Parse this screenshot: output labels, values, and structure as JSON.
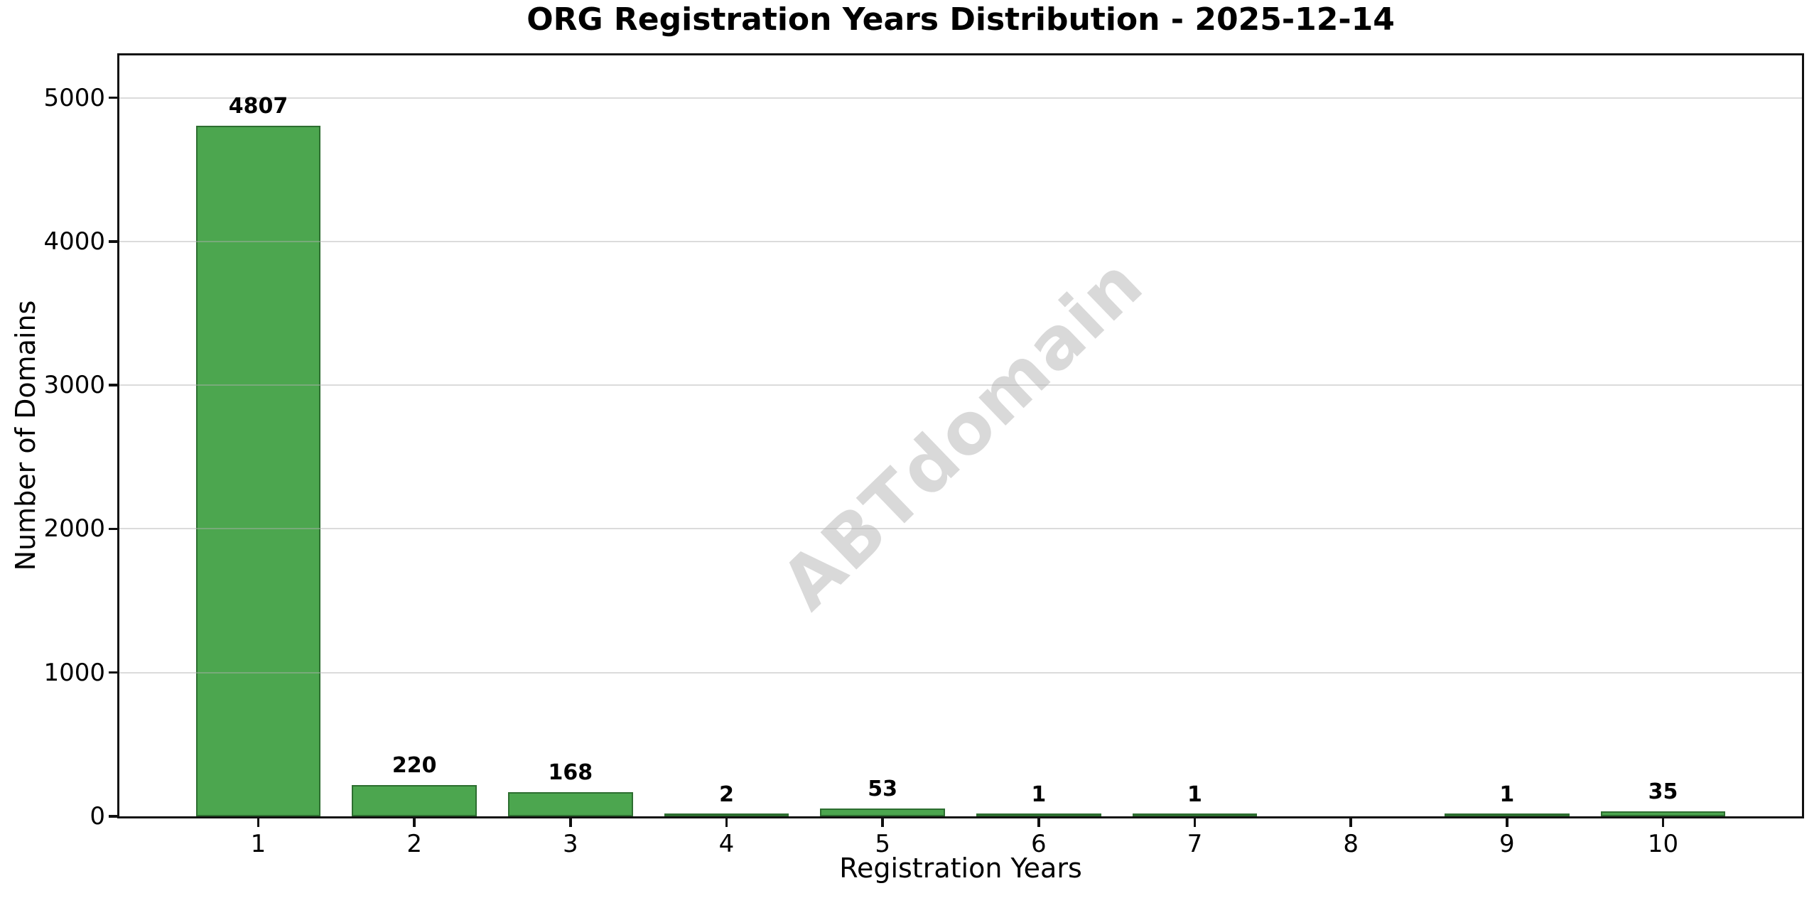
{
  "chart_data": {
    "type": "bar",
    "title": "ORG Registration Years Distribution - 2025-12-14",
    "xlabel": "Registration Years",
    "ylabel": "Number of Domains",
    "watermark": "ABTdomain",
    "categories": [
      1,
      2,
      3,
      4,
      5,
      6,
      7,
      8,
      9,
      10
    ],
    "values": [
      4807,
      220,
      168,
      2,
      53,
      1,
      1,
      0,
      1,
      35
    ],
    "bar_labels": [
      "4807",
      "220",
      "168",
      "2",
      "53",
      "1",
      "1",
      "",
      "1",
      "35"
    ],
    "yticks": [
      0,
      1000,
      2000,
      3000,
      4000,
      5000
    ],
    "ylim": [
      0,
      5295
    ],
    "xlim": [
      0.11,
      10.89
    ],
    "bar_width": 0.8,
    "grid": "horizontal-only",
    "legend": "none",
    "colors": {
      "bar_fill": "#4ca64f",
      "bar_edge": "#2d6e30",
      "grid": "rgba(176,176,176,0.45)",
      "spine": "#111111",
      "text": "#000000",
      "watermark": "#d9d9d9",
      "background": "#ffffff"
    }
  }
}
